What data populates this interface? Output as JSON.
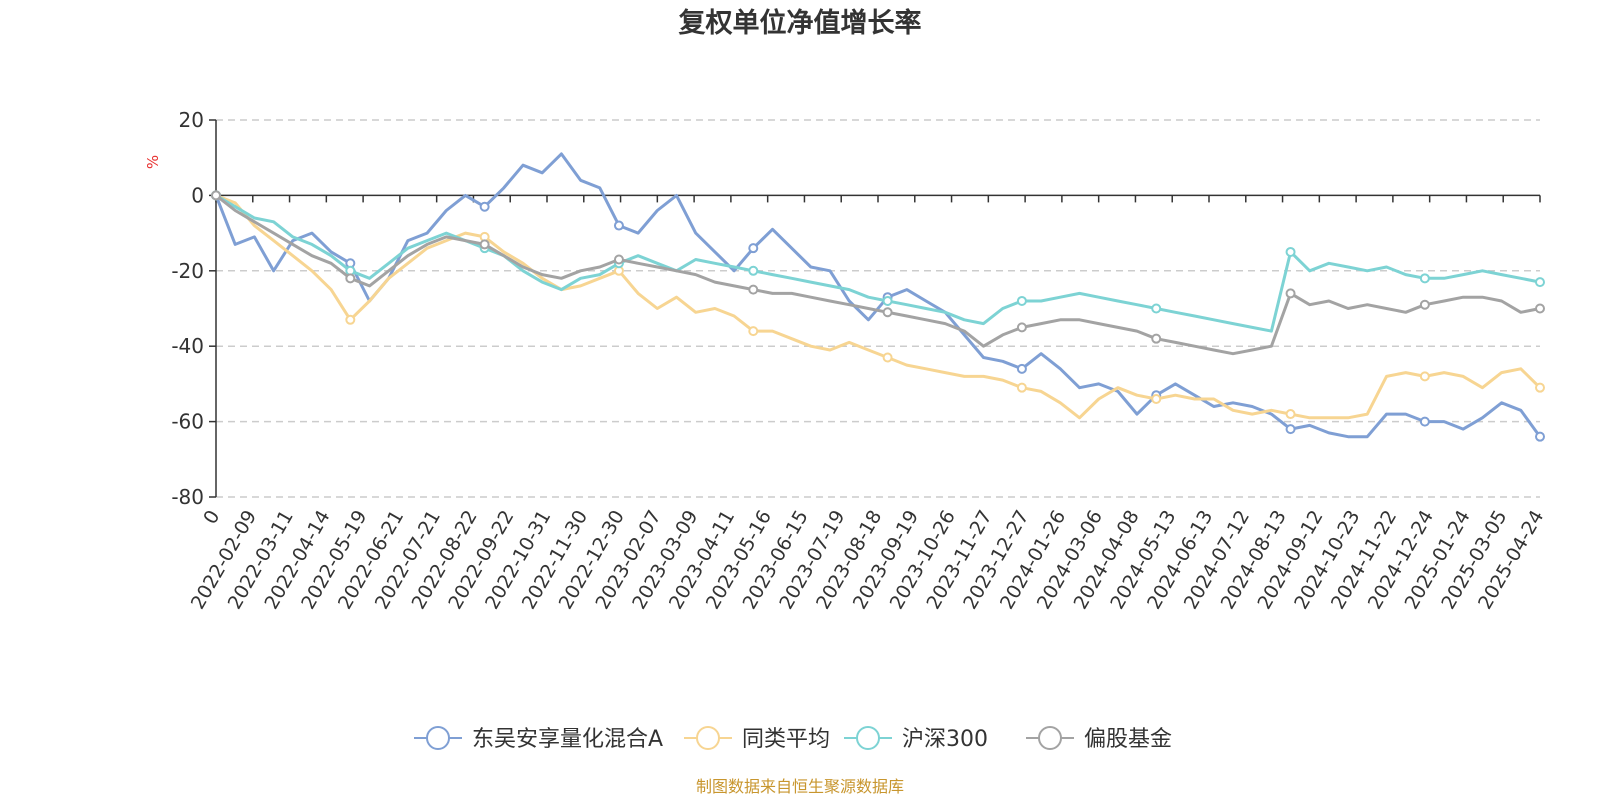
{
  "chart_data": {
    "type": "line",
    "title": "复权单位净值增长率",
    "ylabel": "%",
    "ylim": [
      -80,
      20
    ],
    "yticks": [
      20,
      0,
      -20,
      -40,
      -60,
      -80
    ],
    "grid": "horizontal dashed",
    "legend_position": "bottom",
    "x_tick_labels": [
      "0",
      "2022-02-09",
      "2022-03-11",
      "2022-04-14",
      "2022-05-19",
      "2022-06-21",
      "2022-07-21",
      "2022-08-22",
      "2022-09-22",
      "2022-10-31",
      "2022-11-30",
      "2022-12-30",
      "2023-02-07",
      "2023-03-09",
      "2023-04-11",
      "2023-05-16",
      "2023-06-15",
      "2023-07-19",
      "2023-08-18",
      "2023-09-19",
      "2023-10-26",
      "2023-11-27",
      "2023-12-27",
      "2024-01-26",
      "2024-03-06",
      "2024-04-08",
      "2024-05-13",
      "2024-06-13",
      "2024-07-12",
      "2024-08-13",
      "2024-09-12",
      "2024-10-23",
      "2024-11-22",
      "2024-12-24",
      "2025-01-24",
      "2025-03-05",
      "2025-04-24"
    ],
    "series": [
      {
        "name": "东吴安享量化混合A",
        "color": "#7f9fd4",
        "values": [
          0,
          -13,
          -11,
          -20,
          -12,
          -10,
          -15,
          -18,
          -28,
          -22,
          -12,
          -10,
          -4,
          0,
          -3,
          2,
          8,
          6,
          11,
          4,
          2,
          -8,
          -10,
          -4,
          0,
          -10,
          -15,
          -20,
          -14,
          -9,
          -14,
          -19,
          -20,
          -28,
          -33,
          -27,
          -25,
          -28,
          -31,
          -37,
          -43,
          -44,
          -46,
          -42,
          -46,
          -51,
          -50,
          -52,
          -58,
          -53,
          -50,
          -53,
          -56,
          -55,
          -56,
          -58,
          -62,
          -61,
          -63,
          -64,
          -64,
          -58,
          -58,
          -60,
          -60,
          -62,
          -59,
          -55,
          -57,
          -64
        ]
      },
      {
        "name": "同类平均",
        "color": "#f7d592",
        "values": [
          0,
          -2,
          -8,
          -12,
          -16,
          -20,
          -25,
          -33,
          -28,
          -22,
          -18,
          -14,
          -12,
          -10,
          -11,
          -15,
          -18,
          -22,
          -25,
          -24,
          -22,
          -20,
          -26,
          -30,
          -27,
          -31,
          -30,
          -32,
          -36,
          -36,
          -38,
          -40,
          -41,
          -39,
          -41,
          -43,
          -45,
          -46,
          -47,
          -48,
          -48,
          -49,
          -51,
          -52,
          -55,
          -59,
          -54,
          -51,
          -53,
          -54,
          -53,
          -54,
          -54,
          -57,
          -58,
          -57,
          -58,
          -59,
          -59,
          -59,
          -58,
          -48,
          -47,
          -48,
          -47,
          -48,
          -51,
          -47,
          -46,
          -51
        ]
      },
      {
        "name": "沪深300",
        "color": "#7dd3d4",
        "values": [
          0,
          -3,
          -6,
          -7,
          -11,
          -13,
          -16,
          -20,
          -22,
          -18,
          -14,
          -12,
          -10,
          -12,
          -14,
          -16,
          -20,
          -23,
          -25,
          -22,
          -21,
          -18,
          -16,
          -18,
          -20,
          -17,
          -18,
          -19,
          -20,
          -21,
          -22,
          -23,
          -24,
          -25,
          -27,
          -28,
          -29,
          -30,
          -31,
          -33,
          -34,
          -30,
          -28,
          -28,
          -27,
          -26,
          -27,
          -28,
          -29,
          -30,
          -31,
          -32,
          -33,
          -34,
          -35,
          -36,
          -15,
          -20,
          -18,
          -19,
          -20,
          -19,
          -21,
          -22,
          -22,
          -21,
          -20,
          -21,
          -22,
          -23
        ]
      },
      {
        "name": "偏股基金",
        "color": "#a3a3a3",
        "values": [
          0,
          -4,
          -7,
          -10,
          -13,
          -16,
          -18,
          -22,
          -24,
          -20,
          -16,
          -13,
          -11,
          -12,
          -13,
          -16,
          -19,
          -21,
          -22,
          -20,
          -19,
          -17,
          -18,
          -19,
          -20,
          -21,
          -23,
          -24,
          -25,
          -26,
          -26,
          -27,
          -28,
          -29,
          -30,
          -31,
          -32,
          -33,
          -34,
          -36,
          -40,
          -37,
          -35,
          -34,
          -33,
          -33,
          -34,
          -35,
          -36,
          -38,
          -39,
          -40,
          -41,
          -42,
          -41,
          -40,
          -26,
          -29,
          -28,
          -30,
          -29,
          -30,
          -31,
          -29,
          -28,
          -27,
          -27,
          -28,
          -31,
          -30
        ]
      }
    ]
  },
  "source_note": "制图数据来自恒生聚源数据库"
}
